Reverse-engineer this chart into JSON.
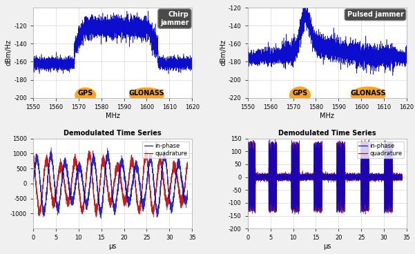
{
  "fig_width": 6.01,
  "fig_height": 3.68,
  "dpi": 100,
  "background": "#f0f0f0",
  "axes_bg": "#ffffff",
  "freq_xlim": [
    1550,
    1620
  ],
  "freq_xticks": [
    1550,
    1560,
    1570,
    1580,
    1590,
    1600,
    1610,
    1620
  ],
  "chirp_ylim": [
    -200,
    -100
  ],
  "chirp_yticks": [
    -200,
    -180,
    -160,
    -140,
    -120
  ],
  "pulsed_ylim": [
    -220,
    -120
  ],
  "pulsed_yticks": [
    -220,
    -200,
    -180,
    -160,
    -140,
    -120
  ],
  "time_xlim": [
    0,
    35
  ],
  "time_xticks": [
    0,
    5,
    10,
    15,
    20,
    25,
    30,
    35
  ],
  "chirp_time_ylim": [
    -1500,
    1500
  ],
  "chirp_time_yticks": [
    -1000,
    -500,
    0,
    500,
    1000,
    1500
  ],
  "pulsed_time_ylim": [
    -200,
    150
  ],
  "pulsed_time_yticks": [
    -200,
    -150,
    -100,
    -50,
    0,
    50,
    100,
    150
  ],
  "blue_color": "#0000cc",
  "red_color": "#cc0000",
  "orange_color": "#f5a623",
  "grid_color": "#d8d8d8",
  "ylabel_freq": "dBm/Hz",
  "xlabel_freq": "MHz",
  "xlabel_time": "μs",
  "title_time": "Demodulated Time Series",
  "legend_inphase": "in-phase",
  "legend_quadrature": "quadrature",
  "chirp_label": "Chirp\njammer",
  "pulsed_label": "Pulsed jammer",
  "tick_fontsize": 6,
  "label_fontsize": 7,
  "title_fontsize": 7,
  "legend_fontsize": 6
}
